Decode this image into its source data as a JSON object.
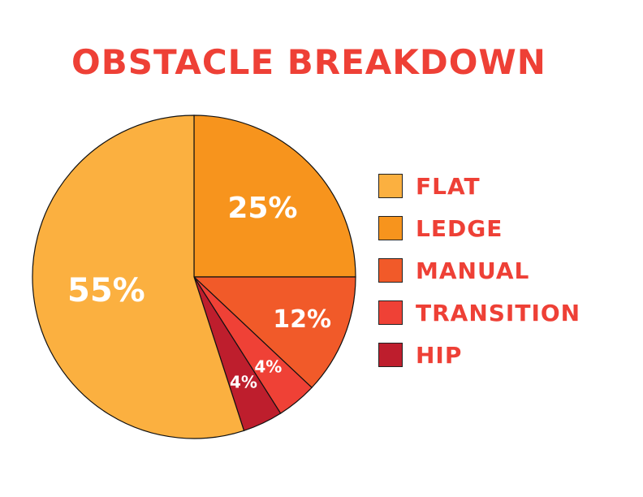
{
  "chart_data": {
    "type": "pie",
    "title": "OBSTACLE BREAKDOWN",
    "categories": [
      "FLAT",
      "LEDGE",
      "MANUAL",
      "TRANSITION",
      "HIP"
    ],
    "values": [
      55,
      25,
      12,
      4,
      4
    ],
    "labels": [
      "55%",
      "25%",
      "12%",
      "4%",
      "4%"
    ],
    "colors": [
      "#fbb040",
      "#f7941d",
      "#f15a29",
      "#ef4136",
      "#be1e2d"
    ],
    "legend_position": "right",
    "slice_order": "clockwise from top, largest slice counter-clockwise"
  }
}
